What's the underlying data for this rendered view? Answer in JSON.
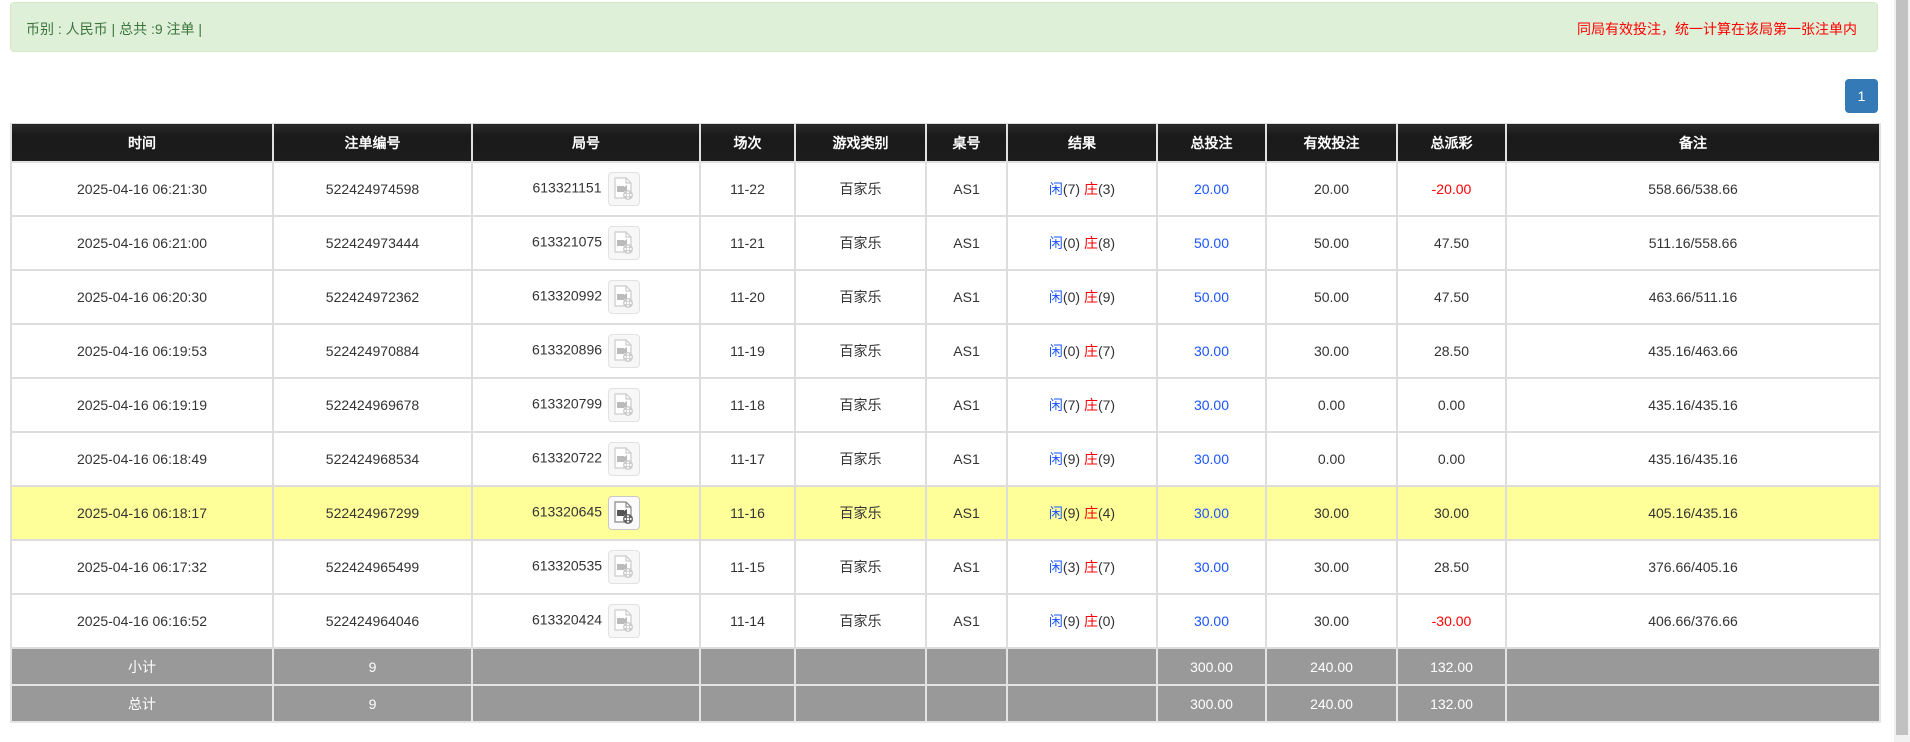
{
  "info": {
    "summary": "币别 : 人民币 | 总共 :9 注单 |",
    "notice": "同局有效投注，统一计算在该局第一张注单内"
  },
  "pagination": {
    "current_page": "1"
  },
  "colors": {
    "player": "#1a55ff",
    "banker": "#ff0000",
    "negative": "#ff0000",
    "highlight": "#ffff99",
    "header": "#1c1c1c",
    "summary": "#999999"
  },
  "table": {
    "headers": [
      "时间",
      "注单编号",
      "局号",
      "场次",
      "游戏类别",
      "桌号",
      "结果",
      "总投注",
      "有效投注",
      "总派彩",
      "备注"
    ],
    "rows": [
      {
        "time": "2025-04-16 06:21:30",
        "bet_id": "522424974598",
        "round": "613321151",
        "session": "11-22",
        "game": "百家乐",
        "table": "AS1",
        "player_label": "闲",
        "player_score": "(7)",
        "banker_label": "庄",
        "banker_score": "(3)",
        "total_bet": "20.00",
        "valid_bet": "20.00",
        "payout": "-20.00",
        "note": "558.66/538.66",
        "highlighted": false
      },
      {
        "time": "2025-04-16 06:21:00",
        "bet_id": "522424973444",
        "round": "613321075",
        "session": "11-21",
        "game": "百家乐",
        "table": "AS1",
        "player_label": "闲",
        "player_score": "(0)",
        "banker_label": "庄",
        "banker_score": "(8)",
        "total_bet": "50.00",
        "valid_bet": "50.00",
        "payout": "47.50",
        "note": "511.16/558.66",
        "highlighted": false
      },
      {
        "time": "2025-04-16 06:20:30",
        "bet_id": "522424972362",
        "round": "613320992",
        "session": "11-20",
        "game": "百家乐",
        "table": "AS1",
        "player_label": "闲",
        "player_score": "(0)",
        "banker_label": "庄",
        "banker_score": "(9)",
        "total_bet": "50.00",
        "valid_bet": "50.00",
        "payout": "47.50",
        "note": "463.66/511.16",
        "highlighted": false
      },
      {
        "time": "2025-04-16 06:19:53",
        "bet_id": "522424970884",
        "round": "613320896",
        "session": "11-19",
        "game": "百家乐",
        "table": "AS1",
        "player_label": "闲",
        "player_score": "(0)",
        "banker_label": "庄",
        "banker_score": "(7)",
        "total_bet": "30.00",
        "valid_bet": "30.00",
        "payout": "28.50",
        "note": "435.16/463.66",
        "highlighted": false
      },
      {
        "time": "2025-04-16 06:19:19",
        "bet_id": "522424969678",
        "round": "613320799",
        "session": "11-18",
        "game": "百家乐",
        "table": "AS1",
        "player_label": "闲",
        "player_score": "(7)",
        "banker_label": "庄",
        "banker_score": "(7)",
        "total_bet": "30.00",
        "valid_bet": "0.00",
        "payout": "0.00",
        "note": "435.16/435.16",
        "highlighted": false
      },
      {
        "time": "2025-04-16 06:18:49",
        "bet_id": "522424968534",
        "round": "613320722",
        "session": "11-17",
        "game": "百家乐",
        "table": "AS1",
        "player_label": "闲",
        "player_score": "(9)",
        "banker_label": "庄",
        "banker_score": "(9)",
        "total_bet": "30.00",
        "valid_bet": "0.00",
        "payout": "0.00",
        "note": "435.16/435.16",
        "highlighted": false
      },
      {
        "time": "2025-04-16 06:18:17",
        "bet_id": "522424967299",
        "round": "613320645",
        "session": "11-16",
        "game": "百家乐",
        "table": "AS1",
        "player_label": "闲",
        "player_score": "(9)",
        "banker_label": "庄",
        "banker_score": "(4)",
        "total_bet": "30.00",
        "valid_bet": "30.00",
        "payout": "30.00",
        "note": "405.16/435.16",
        "highlighted": true
      },
      {
        "time": "2025-04-16 06:17:32",
        "bet_id": "522424965499",
        "round": "613320535",
        "session": "11-15",
        "game": "百家乐",
        "table": "AS1",
        "player_label": "闲",
        "player_score": "(3)",
        "banker_label": "庄",
        "banker_score": "(7)",
        "total_bet": "30.00",
        "valid_bet": "30.00",
        "payout": "28.50",
        "note": "376.66/405.16",
        "highlighted": false
      },
      {
        "time": "2025-04-16 06:16:52",
        "bet_id": "522424964046",
        "round": "613320424",
        "session": "11-14",
        "game": "百家乐",
        "table": "AS1",
        "player_label": "闲",
        "player_score": "(9)",
        "banker_label": "庄",
        "banker_score": "(0)",
        "total_bet": "30.00",
        "valid_bet": "30.00",
        "payout": "-30.00",
        "note": "406.66/376.66",
        "highlighted": false
      }
    ],
    "summary_rows": [
      {
        "label": "小计",
        "count": "9",
        "total_bet": "300.00",
        "valid_bet": "240.00",
        "payout": "132.00"
      },
      {
        "label": "总计",
        "count": "9",
        "total_bet": "300.00",
        "valid_bet": "240.00",
        "payout": "132.00"
      }
    ]
  }
}
